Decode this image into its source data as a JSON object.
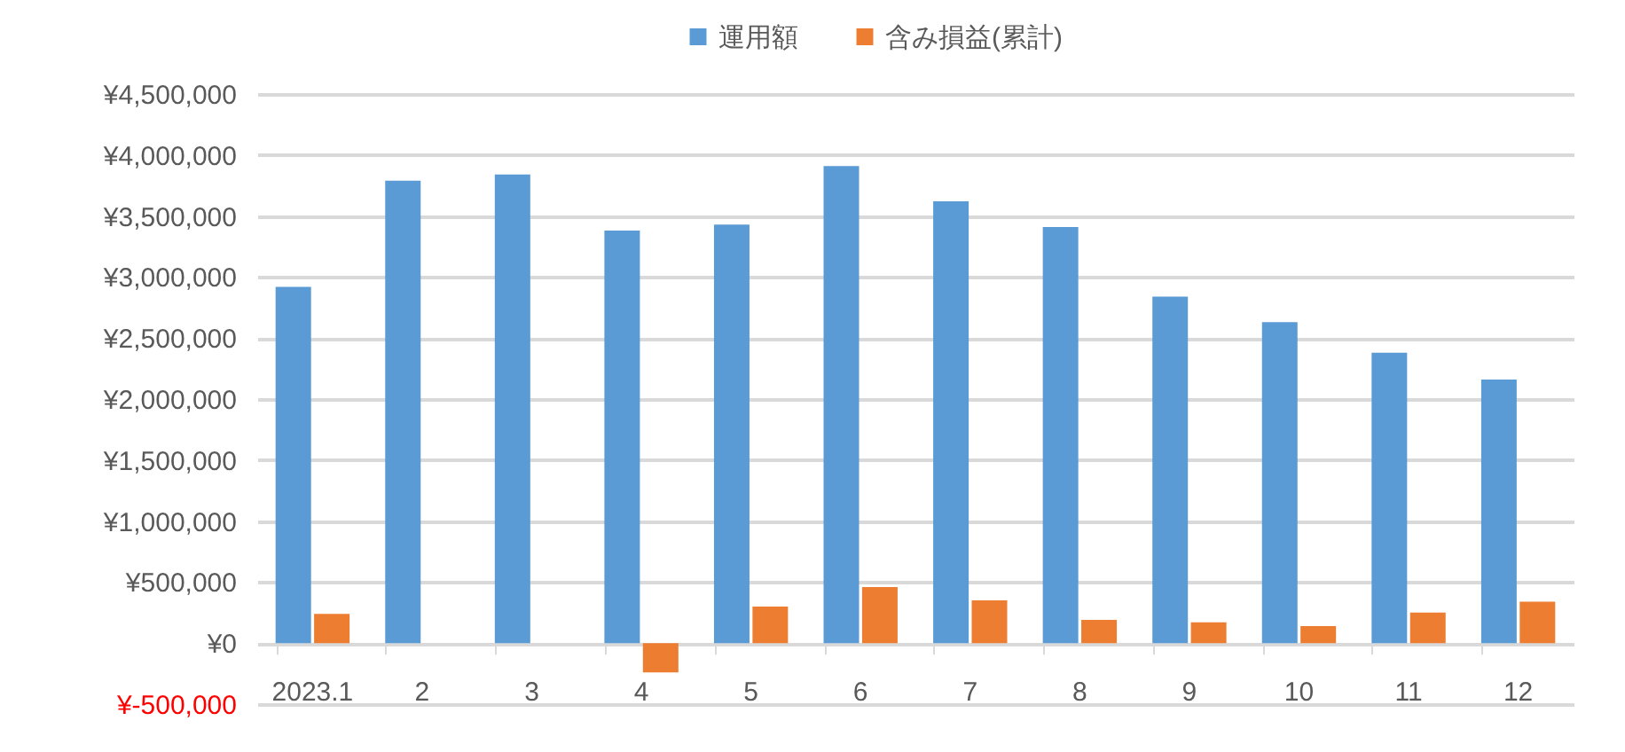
{
  "chart_data": {
    "type": "bar",
    "categories": [
      "2023.1",
      "2",
      "3",
      "4",
      "5",
      "6",
      "7",
      "8",
      "9",
      "10",
      "11",
      "12"
    ],
    "series": [
      {
        "name": "運用額",
        "color": "#5b9bd5",
        "values": [
          2920000,
          3790000,
          3840000,
          3380000,
          3430000,
          3910000,
          3620000,
          3410000,
          2840000,
          2630000,
          2380000,
          2160000
        ]
      },
      {
        "name": "含み損益(累計)",
        "color": "#ed7d31",
        "values": [
          240000,
          0,
          0,
          -240000,
          300000,
          460000,
          350000,
          190000,
          170000,
          140000,
          250000,
          340000
        ]
      }
    ],
    "ylim": [
      -500000,
      4500000
    ],
    "yticks": [
      {
        "value": -500000,
        "label": "¥-500,000"
      },
      {
        "value": 0,
        "label": "¥0"
      },
      {
        "value": 500000,
        "label": "¥500,000"
      },
      {
        "value": 1000000,
        "label": "¥1,000,000"
      },
      {
        "value": 1500000,
        "label": "¥1,500,000"
      },
      {
        "value": 2000000,
        "label": "¥2,000,000"
      },
      {
        "value": 2500000,
        "label": "¥2,500,000"
      },
      {
        "value": 3000000,
        "label": "¥3,000,000"
      },
      {
        "value": 3500000,
        "label": "¥3,500,000"
      },
      {
        "value": 4000000,
        "label": "¥4,000,000"
      },
      {
        "value": 4500000,
        "label": "¥4,500,000"
      }
    ],
    "grid": "y",
    "legend": "top"
  }
}
